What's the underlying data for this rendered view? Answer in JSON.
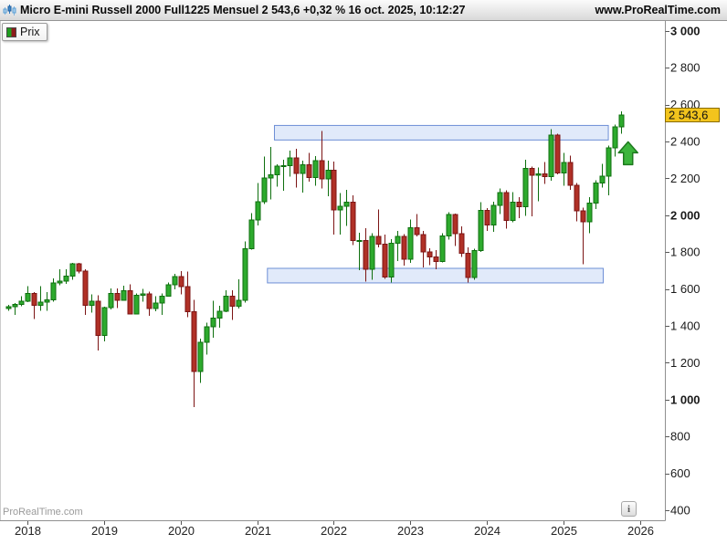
{
  "header": {
    "title_full": "Micro E-mini Russell 2000 Full1225 Mensuel 2 543,6 +0,32 % 16 oct. 2025, 10:12:27",
    "instrument": "Micro E-mini Russell 2000",
    "contract": "Full1225",
    "timeframe": "Mensuel",
    "last_price_label": "2 543,6",
    "change_label": "+0,32 %",
    "datetime_label": "16 oct. 2025, 10:12:27",
    "website": "www.ProRealTime.com"
  },
  "toolbar": {
    "price_button_label": "Prix"
  },
  "watermark": "ProRealTime.com",
  "info_button_label": "i",
  "colors": {
    "up": "#2daa2d",
    "up_border": "#0e6f0e",
    "down": "#b03026",
    "down_border": "#7c1414",
    "zone_fill": "#c8d8f5",
    "zone_border": "#6d8fd6",
    "price_label_bg": "#f2c41d",
    "price_label_border": "#8a6d00",
    "arrow_fill": "#3cb53c",
    "arrow_border": "#1e7a1e",
    "axis_line": "#909090",
    "tick": "#555555",
    "label_text": "#1a1a1a"
  },
  "chart_data": {
    "type": "candlestick",
    "title": "Micro E-mini Russell 2000 Full1225 Mensuel",
    "start_month": "2017-10",
    "last_price": 2543.6,
    "ohlc": [
      [
        1495,
        1514,
        1481,
        1503
      ],
      [
        1503,
        1524,
        1459,
        1517
      ],
      [
        1517,
        1561,
        1507,
        1533
      ],
      [
        1533,
        1615,
        1530,
        1575
      ],
      [
        1575,
        1584,
        1436,
        1512
      ],
      [
        1512,
        1615,
        1482,
        1529
      ],
      [
        1529,
        1583,
        1481,
        1542
      ],
      [
        1542,
        1658,
        1531,
        1633
      ],
      [
        1633,
        1708,
        1621,
        1643
      ],
      [
        1643,
        1708,
        1628,
        1670
      ],
      [
        1670,
        1742,
        1650,
        1737
      ],
      [
        1737,
        1742,
        1685,
        1696
      ],
      [
        1696,
        1708,
        1459,
        1511
      ],
      [
        1511,
        1571,
        1471,
        1533
      ],
      [
        1533,
        1565,
        1266,
        1348
      ],
      [
        1348,
        1505,
        1315,
        1499
      ],
      [
        1499,
        1602,
        1490,
        1575
      ],
      [
        1575,
        1602,
        1497,
        1539
      ],
      [
        1539,
        1618,
        1538,
        1591
      ],
      [
        1591,
        1626,
        1461,
        1465
      ],
      [
        1465,
        1577,
        1461,
        1566
      ],
      [
        1566,
        1600,
        1532,
        1574
      ],
      [
        1574,
        1585,
        1455,
        1494
      ],
      [
        1494,
        1560,
        1480,
        1523
      ],
      [
        1523,
        1575,
        1460,
        1562
      ],
      [
        1562,
        1635,
        1560,
        1624
      ],
      [
        1624,
        1683,
        1597,
        1668
      ],
      [
        1668,
        1696,
        1570,
        1614
      ],
      [
        1614,
        1694,
        1448,
        1476
      ],
      [
        1476,
        1540,
        960,
        1153
      ],
      [
        1153,
        1330,
        1090,
        1310
      ],
      [
        1310,
        1418,
        1243,
        1394
      ],
      [
        1394,
        1537,
        1335,
        1441
      ],
      [
        1441,
        1510,
        1390,
        1480
      ],
      [
        1480,
        1592,
        1474,
        1561
      ],
      [
        1561,
        1594,
        1433,
        1507
      ],
      [
        1507,
        1652,
        1494,
        1538
      ],
      [
        1538,
        1857,
        1527,
        1819
      ],
      [
        1819,
        2011,
        1814,
        1975
      ],
      [
        1975,
        2175,
        1945,
        2073
      ],
      [
        2073,
        2319,
        2060,
        2201
      ],
      [
        2201,
        2371,
        2086,
        2220
      ],
      [
        2220,
        2277,
        2155,
        2266
      ],
      [
        2266,
        2302,
        2132,
        2268
      ],
      [
        2268,
        2350,
        2210,
        2310
      ],
      [
        2310,
        2361,
        2151,
        2226
      ],
      [
        2226,
        2296,
        2122,
        2273
      ],
      [
        2273,
        2339,
        2183,
        2204
      ],
      [
        2204,
        2322,
        2160,
        2297
      ],
      [
        2297,
        2458,
        2144,
        2198
      ],
      [
        2198,
        2296,
        2102,
        2245
      ],
      [
        2245,
        2290,
        1894,
        2028
      ],
      [
        2028,
        2120,
        1895,
        2048
      ],
      [
        2048,
        2138,
        1941,
        2070
      ],
      [
        2070,
        2109,
        1839,
        1864
      ],
      [
        1864,
        1906,
        1701,
        1864
      ],
      [
        1864,
        1930,
        1641,
        1708
      ],
      [
        1708,
        1903,
        1649,
        1885
      ],
      [
        1885,
        2031,
        1825,
        1844
      ],
      [
        1844,
        1895,
        1654,
        1665
      ],
      [
        1665,
        1871,
        1636,
        1847
      ],
      [
        1847,
        1914,
        1752,
        1886
      ],
      [
        1886,
        1898,
        1727,
        1761
      ],
      [
        1761,
        1976,
        1741,
        1931
      ],
      [
        1931,
        2007,
        1884,
        1896
      ],
      [
        1896,
        1916,
        1717,
        1802
      ],
      [
        1802,
        1821,
        1729,
        1774
      ],
      [
        1774,
        1812,
        1707,
        1749
      ],
      [
        1749,
        1902,
        1743,
        1888
      ],
      [
        1888,
        2016,
        1867,
        2003
      ],
      [
        2003,
        2010,
        1832,
        1899
      ],
      [
        1899,
        1940,
        1774,
        1794
      ],
      [
        1794,
        1827,
        1634,
        1662
      ],
      [
        1662,
        1818,
        1650,
        1809
      ],
      [
        1809,
        2072,
        1800,
        2027
      ],
      [
        2027,
        2039,
        1914,
        1947
      ],
      [
        1947,
        2074,
        1910,
        2054
      ],
      [
        2054,
        2145,
        2006,
        2124
      ],
      [
        2124,
        2136,
        1928,
        1973
      ],
      [
        1973,
        2125,
        1963,
        2070
      ],
      [
        2070,
        2099,
        1984,
        2047
      ],
      [
        2047,
        2300,
        1996,
        2254
      ],
      [
        2254,
        2263,
        1993,
        2217
      ],
      [
        2217,
        2259,
        2075,
        2224
      ],
      [
        2224,
        2288,
        2171,
        2210
      ],
      [
        2210,
        2466,
        2186,
        2434
      ],
      [
        2434,
        2442,
        2222,
        2230
      ],
      [
        2230,
        2339,
        2159,
        2287
      ],
      [
        2287,
        2324,
        2137,
        2163
      ],
      [
        2163,
        2175,
        1966,
        2023
      ],
      [
        2023,
        2042,
        1733,
        1964
      ],
      [
        1964,
        2097,
        1903,
        2066
      ],
      [
        2066,
        2190,
        2033,
        2175
      ],
      [
        2175,
        2278,
        2150,
        2211
      ],
      [
        2211,
        2378,
        2109,
        2366
      ],
      [
        2366,
        2492,
        2318,
        2478
      ],
      [
        2478,
        2563,
        2441,
        2543.6
      ]
    ],
    "y_axis": {
      "ticks": [
        {
          "value": 3000,
          "label": "3 000",
          "bold": true
        },
        {
          "value": 2800,
          "label": "2 800",
          "bold": false
        },
        {
          "value": 2600,
          "label": "2 600",
          "bold": false
        },
        {
          "value": 2400,
          "label": "2 400",
          "bold": false
        },
        {
          "value": 2200,
          "label": "2 200",
          "bold": false
        },
        {
          "value": 2000,
          "label": "2 000",
          "bold": true
        },
        {
          "value": 1800,
          "label": "1 800",
          "bold": false
        },
        {
          "value": 1600,
          "label": "1 600",
          "bold": false
        },
        {
          "value": 1400,
          "label": "1 400",
          "bold": false
        },
        {
          "value": 1200,
          "label": "1 200",
          "bold": false
        },
        {
          "value": 1000,
          "label": "1 000",
          "bold": true
        },
        {
          "value": 800,
          "label": "800",
          "bold": false
        },
        {
          "value": 600,
          "label": "600",
          "bold": false
        },
        {
          "value": 400,
          "label": "400",
          "bold": false
        }
      ],
      "current": {
        "value": 2543.6,
        "label": "2 543,6"
      }
    },
    "x_axis": {
      "years": [
        {
          "label": "2018",
          "month_index": 3
        },
        {
          "label": "2019",
          "month_index": 15
        },
        {
          "label": "2020",
          "month_index": 27
        },
        {
          "label": "2021",
          "month_index": 39
        },
        {
          "label": "2022",
          "month_index": 51
        },
        {
          "label": "2023",
          "month_index": 63
        },
        {
          "label": "2024",
          "month_index": 75
        },
        {
          "label": "2025",
          "month_index": 87
        },
        {
          "label": "2026",
          "month_index": 99
        }
      ]
    },
    "zones": [
      {
        "name": "resistance-zone",
        "price_from": 2408,
        "price_to": 2487,
        "index_from": 41.7,
        "index_to": 94.0
      },
      {
        "name": "support-zone",
        "price_from": 1633,
        "price_to": 1712,
        "index_from": 40.6,
        "index_to": 93.2
      }
    ],
    "marker": {
      "type": "up-arrow",
      "index": 97.1,
      "price": 2398
    }
  }
}
